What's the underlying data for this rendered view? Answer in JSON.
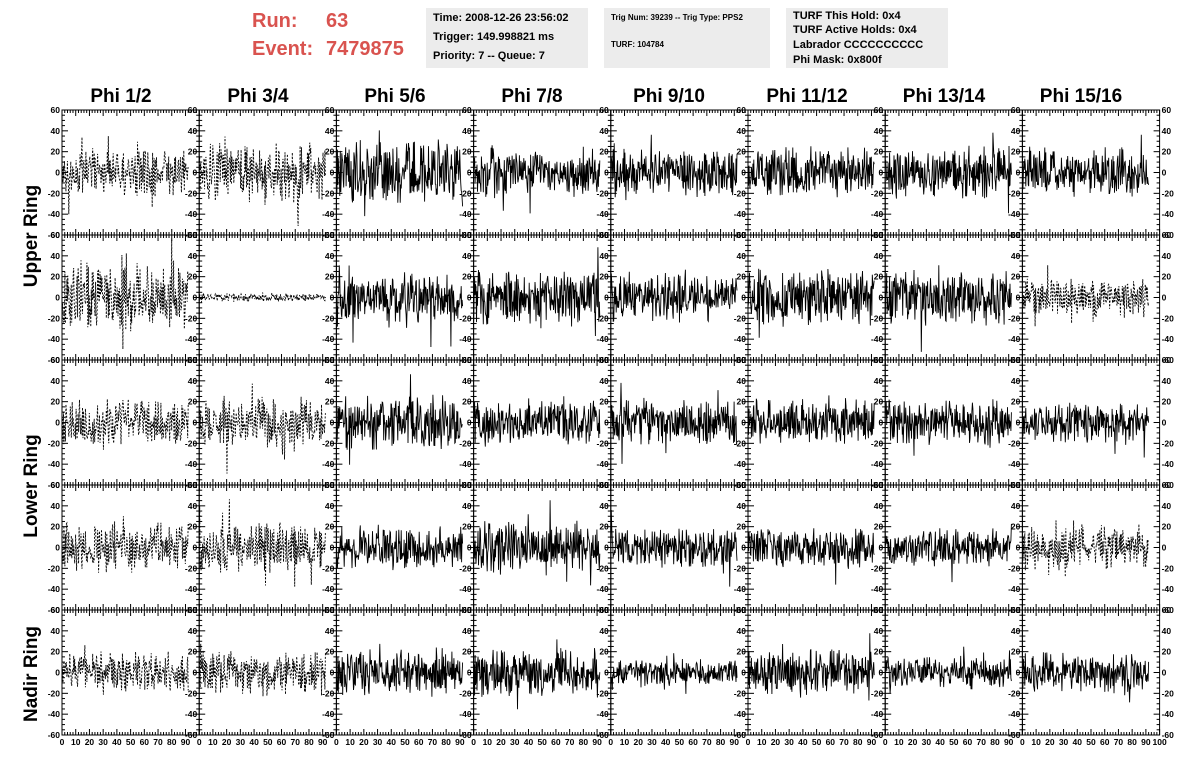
{
  "header": {
    "run_label": "Run:",
    "run_value": "63",
    "event_label": "Event:",
    "event_value": "7479875",
    "time_text": "Time: 2008-12-26 23:56:02",
    "trigger_text": "Trigger: 149.998821 ms",
    "priority_text": "Priority: 7 -- Queue: 7",
    "trig_num_text": "Trig Num: 39239 -- Trig Type: PPS2",
    "turf_text": "TURF: 104784",
    "turf_this_hold": "TURF This Hold: 0x4",
    "turf_active_holds": "TURF Active Holds: 0x4",
    "labrador": "Labrador CCCCCCCCCC",
    "phi_mask": "Phi Mask: 0x800f",
    "accent_color": "#d9534f",
    "info_bg": "#ececec"
  },
  "columns": [
    "Phi 1/2",
    "Phi 3/4",
    "Phi 5/6",
    "Phi 7/8",
    "Phi 9/10",
    "Phi 11/12",
    "Phi 13/14",
    "Phi 15/16"
  ],
  "ring_labels": [
    "Upper Ring",
    "Lower Ring",
    "Nadir Ring"
  ],
  "chart_data": {
    "type": "line",
    "x_range": [
      0,
      100
    ],
    "y_range": [
      -60,
      60
    ],
    "x_tick_labels": [
      "0",
      "10",
      "20",
      "30",
      "40",
      "50",
      "60",
      "70",
      "80",
      "90",
      "100"
    ],
    "y_tick_labels": [
      "60",
      "40",
      "20",
      "0",
      "-20",
      "-40",
      "-60"
    ],
    "grid": false,
    "trace_length": 260,
    "trace_x_max": 92,
    "rows": 5,
    "cols": 8,
    "note_values": "waveform samples (y, in ADC units) vs x; approximate noise traces read from figure",
    "styles": [
      [
        "dotted",
        "dotted",
        "solid",
        "solid",
        "solid",
        "solid",
        "solid",
        "solid"
      ],
      [
        "dotted",
        "dotted",
        "solid",
        "solid",
        "solid",
        "solid",
        "solid",
        "dotted"
      ],
      [
        "dotted",
        "dotted",
        "solid",
        "solid",
        "solid",
        "solid",
        "solid",
        "solid"
      ],
      [
        "dotted",
        "dotted",
        "solid",
        "solid",
        "solid",
        "solid",
        "solid",
        "dotted"
      ],
      [
        "dotted",
        "dotted",
        "solid",
        "solid",
        "solid",
        "solid",
        "solid",
        "solid"
      ]
    ],
    "amplitude": [
      [
        16,
        22,
        22,
        18,
        17,
        17,
        18,
        17
      ],
      [
        24,
        3,
        19,
        19,
        17,
        20,
        19,
        14
      ],
      [
        16,
        18,
        20,
        16,
        16,
        16,
        17,
        14
      ],
      [
        17,
        18,
        15,
        18,
        14,
        14,
        13,
        16
      ],
      [
        14,
        16,
        16,
        17,
        9,
        16,
        11,
        15
      ]
    ]
  }
}
